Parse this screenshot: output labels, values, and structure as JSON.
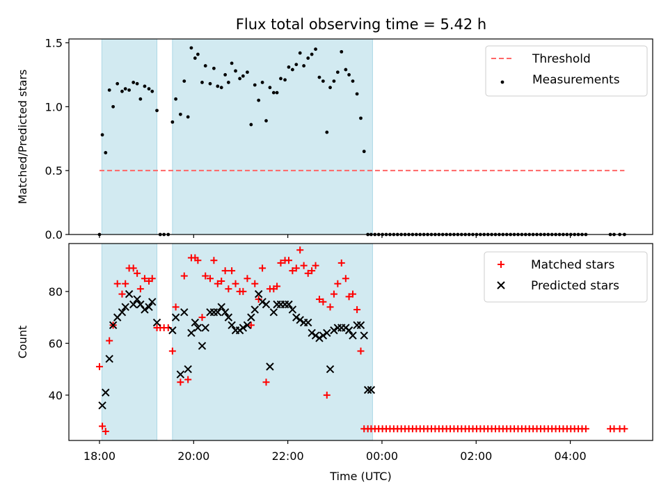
{
  "figure": {
    "title": "Flux total observing time = 5.42 h"
  },
  "chart_data": [
    {
      "type": "scatter",
      "ylabel": "Matched/Predicted stars",
      "xlabel": "",
      "x_unit": "hours (UTC), values beyond 24 are after midnight",
      "xlim": [
        17.35,
        29.75
      ],
      "ylim": [
        0.0,
        1.53
      ],
      "yticks": [
        0.0,
        0.5,
        1.0,
        1.5
      ],
      "ytick_labels": [
        "0.0",
        "0.5",
        "1.0",
        "1.5"
      ],
      "xticks": [
        18,
        20,
        22,
        24,
        26,
        28
      ],
      "show_xtick_labels": false,
      "shaded_intervals": [
        [
          18.05,
          19.22
        ],
        [
          19.55,
          23.8
        ]
      ],
      "shade_color": "#add8e6",
      "threshold": {
        "name": "Threshold",
        "value": 0.5,
        "x_range": [
          18.0,
          29.15
        ],
        "color": "#ff6666"
      },
      "legend_position": "upper right",
      "series": [
        {
          "name": "Measurements",
          "marker": "dot",
          "color": "#000000",
          "x": [
            18.0,
            18.06,
            18.13,
            18.21,
            18.29,
            18.38,
            18.48,
            18.55,
            18.63,
            18.72,
            18.8,
            18.87,
            18.96,
            19.05,
            19.12,
            19.22,
            19.29,
            19.37,
            19.46,
            19.55,
            19.62,
            19.72,
            19.8,
            19.88,
            19.95,
            20.03,
            20.09,
            20.18,
            20.25,
            20.35,
            20.43,
            20.51,
            20.59,
            20.67,
            20.74,
            20.81,
            20.89,
            20.98,
            21.05,
            21.14,
            21.22,
            21.3,
            21.38,
            21.46,
            21.54,
            21.62,
            21.7,
            21.77,
            21.85,
            21.94,
            22.02,
            22.1,
            22.18,
            22.26,
            22.34,
            22.43,
            22.51,
            22.59,
            22.67,
            22.75,
            22.83,
            22.9,
            22.98,
            23.06,
            23.14,
            23.23,
            23.3,
            23.38,
            23.47,
            23.55,
            23.62,
            23.7,
            23.77
          ],
          "y": [
            0.0,
            0.78,
            0.64,
            1.13,
            1.0,
            1.18,
            1.12,
            1.14,
            1.13,
            1.19,
            1.18,
            1.06,
            1.16,
            1.14,
            1.12,
            0.97,
            0.0,
            0.0,
            0.0,
            0.88,
            1.06,
            0.94,
            1.2,
            0.92,
            1.46,
            1.38,
            1.41,
            1.19,
            1.32,
            1.18,
            1.3,
            1.16,
            1.15,
            1.25,
            1.19,
            1.34,
            1.28,
            1.22,
            1.24,
            1.27,
            0.86,
            1.17,
            1.05,
            1.19,
            0.89,
            1.15,
            1.11,
            1.11,
            1.22,
            1.21,
            1.31,
            1.29,
            1.33,
            1.42,
            1.32,
            1.38,
            1.41,
            1.45,
            1.23,
            1.2,
            0.8,
            1.15,
            1.2,
            1.27,
            1.43,
            1.29,
            1.25,
            1.2,
            1.1,
            0.91,
            0.65,
            0.0,
            0.0
          ]
        },
        {
          "name": "",
          "marker": "dot",
          "color": "#000000",
          "x": [
            23.85,
            23.93,
            24.01,
            24.09,
            24.17,
            24.25,
            24.33,
            24.41,
            24.49,
            24.57,
            24.65,
            24.73,
            24.81,
            24.89,
            24.97,
            25.05,
            25.13,
            25.21,
            25.29,
            25.37,
            25.45,
            25.53,
            25.61,
            25.69,
            25.77,
            25.85,
            25.93,
            26.01,
            26.09,
            26.17,
            26.25,
            26.33,
            26.41,
            26.49,
            26.57,
            26.65,
            26.73,
            26.81,
            26.89,
            26.97,
            27.05,
            27.13,
            27.21,
            27.29,
            27.37,
            27.45,
            27.53,
            27.61,
            27.69,
            27.77,
            27.85,
            27.93,
            28.01,
            28.09,
            28.17,
            28.25,
            28.33,
            28.85,
            28.93,
            29.05,
            29.15
          ],
          "y": [
            0.0,
            0.0,
            0.0,
            0.0,
            0.0,
            0.0,
            0.0,
            0.0,
            0.0,
            0.0,
            0.0,
            0.0,
            0.0,
            0.0,
            0.0,
            0.0,
            0.0,
            0.0,
            0.0,
            0.0,
            0.0,
            0.0,
            0.0,
            0.0,
            0.0,
            0.0,
            0.0,
            0.0,
            0.0,
            0.0,
            0.0,
            0.0,
            0.0,
            0.0,
            0.0,
            0.0,
            0.0,
            0.0,
            0.0,
            0.0,
            0.0,
            0.0,
            0.0,
            0.0,
            0.0,
            0.0,
            0.0,
            0.0,
            0.0,
            0.0,
            0.0,
            0.0,
            0.0,
            0.0,
            0.0,
            0.0,
            0.0,
            0.0,
            0.0,
            0.0,
            0.0
          ]
        }
      ]
    },
    {
      "type": "scatter",
      "ylabel": "Count",
      "xlabel": "Time (UTC)",
      "x_unit": "hours (UTC), values beyond 24 are after midnight",
      "xlim": [
        17.35,
        29.75
      ],
      "ylim": [
        22.5,
        98.5
      ],
      "yticks": [
        40,
        60,
        80
      ],
      "ytick_labels": [
        "40",
        "60",
        "80"
      ],
      "xticks": [
        18,
        20,
        22,
        24,
        26,
        28
      ],
      "xtick_labels": [
        "18:00",
        "20:00",
        "22:00",
        "00:00",
        "02:00",
        "04:00"
      ],
      "show_xtick_labels": true,
      "shaded_intervals": [
        [
          18.05,
          19.22
        ],
        [
          19.55,
          23.8
        ]
      ],
      "shade_color": "#add8e6",
      "legend_position": "upper right",
      "series": [
        {
          "name": "Matched stars",
          "marker": "plus",
          "color": "#ff0000",
          "x": [
            18.0,
            18.06,
            18.13,
            18.21,
            18.29,
            18.38,
            18.48,
            18.55,
            18.63,
            18.72,
            18.8,
            18.87,
            18.96,
            19.05,
            19.12,
            19.22,
            19.29,
            19.37,
            19.46,
            19.55,
            19.62,
            19.72,
            19.8,
            19.88,
            19.95,
            20.03,
            20.09,
            20.18,
            20.25,
            20.35,
            20.43,
            20.51,
            20.59,
            20.67,
            20.74,
            20.81,
            20.89,
            20.98,
            21.05,
            21.14,
            21.22,
            21.3,
            21.38,
            21.46,
            21.54,
            21.62,
            21.7,
            21.77,
            21.85,
            21.94,
            22.02,
            22.1,
            22.18,
            22.26,
            22.34,
            22.43,
            22.51,
            22.59,
            22.67,
            22.75,
            22.83,
            22.9,
            22.98,
            23.06,
            23.14,
            23.23,
            23.3,
            23.38,
            23.47,
            23.55,
            23.62,
            23.7,
            23.77
          ],
          "y": [
            51,
            28,
            26,
            61,
            67,
            83,
            79,
            83,
            89,
            89,
            87,
            81,
            85,
            84,
            85,
            66,
            66,
            66,
            66,
            57,
            74,
            45,
            86,
            46,
            93,
            93,
            92,
            70,
            86,
            85,
            92,
            83,
            84,
            88,
            81,
            88,
            83,
            80,
            80,
            85,
            67,
            83,
            77,
            89,
            45,
            81,
            81,
            82,
            91,
            92,
            92,
            88,
            89,
            96,
            90,
            87,
            88,
            90,
            77,
            76,
            40,
            74,
            79,
            83,
            91,
            85,
            78,
            79,
            73,
            57,
            27,
            27,
            27
          ]
        },
        {
          "name": "",
          "marker": "plus",
          "color": "#ff0000",
          "x": [
            23.85,
            23.93,
            24.01,
            24.09,
            24.17,
            24.25,
            24.33,
            24.41,
            24.49,
            24.57,
            24.65,
            24.73,
            24.81,
            24.89,
            24.97,
            25.05,
            25.13,
            25.21,
            25.29,
            25.37,
            25.45,
            25.53,
            25.61,
            25.69,
            25.77,
            25.85,
            25.93,
            26.01,
            26.09,
            26.17,
            26.25,
            26.33,
            26.41,
            26.49,
            26.57,
            26.65,
            26.73,
            26.81,
            26.89,
            26.97,
            27.05,
            27.13,
            27.21,
            27.29,
            27.37,
            27.45,
            27.53,
            27.61,
            27.69,
            27.77,
            27.85,
            27.93,
            28.01,
            28.09,
            28.17,
            28.25,
            28.33,
            28.85,
            28.93,
            29.05,
            29.15
          ],
          "y": [
            27,
            27,
            27,
            27,
            27,
            27,
            27,
            27,
            27,
            27,
            27,
            27,
            27,
            27,
            27,
            27,
            27,
            27,
            27,
            27,
            27,
            27,
            27,
            27,
            27,
            27,
            27,
            27,
            27,
            27,
            27,
            27,
            27,
            27,
            27,
            27,
            27,
            27,
            27,
            27,
            27,
            27,
            27,
            27,
            27,
            27,
            27,
            27,
            27,
            27,
            27,
            27,
            27,
            27,
            27,
            27,
            27,
            27,
            27,
            27,
            27
          ]
        },
        {
          "name": "Predicted stars",
          "marker": "cross",
          "color": "#000000",
          "x": [
            18.06,
            18.13,
            18.21,
            18.29,
            18.38,
            18.48,
            18.55,
            18.63,
            18.72,
            18.8,
            18.87,
            18.96,
            19.05,
            19.12,
            19.22,
            19.55,
            19.62,
            19.72,
            19.8,
            19.88,
            19.95,
            20.03,
            20.09,
            20.18,
            20.25,
            20.35,
            20.43,
            20.51,
            20.59,
            20.67,
            20.74,
            20.81,
            20.89,
            20.98,
            21.05,
            21.14,
            21.22,
            21.3,
            21.38,
            21.46,
            21.54,
            21.62,
            21.7,
            21.77,
            21.85,
            21.94,
            22.02,
            22.1,
            22.18,
            22.26,
            22.34,
            22.43,
            22.51,
            22.59,
            22.67,
            22.75,
            22.83,
            22.9,
            22.98,
            23.06,
            23.14,
            23.23,
            23.3,
            23.38,
            23.47,
            23.55,
            23.62,
            23.7,
            23.77
          ],
          "y": [
            36,
            41,
            54,
            67,
            70,
            72,
            74,
            79,
            75,
            77,
            75,
            73,
            74,
            76,
            68,
            65,
            70,
            48,
            72,
            50,
            64,
            68,
            66,
            59,
            66,
            72,
            72,
            72,
            74,
            72,
            70,
            67,
            65,
            65,
            66,
            67,
            70,
            73,
            79,
            76,
            75,
            51,
            72,
            75,
            75,
            75,
            75,
            73,
            70,
            69,
            68,
            68,
            64,
            63,
            62,
            63,
            64,
            50,
            65,
            66,
            66,
            66,
            65,
            63,
            67,
            67,
            63,
            42,
            42
          ]
        }
      ]
    }
  ]
}
